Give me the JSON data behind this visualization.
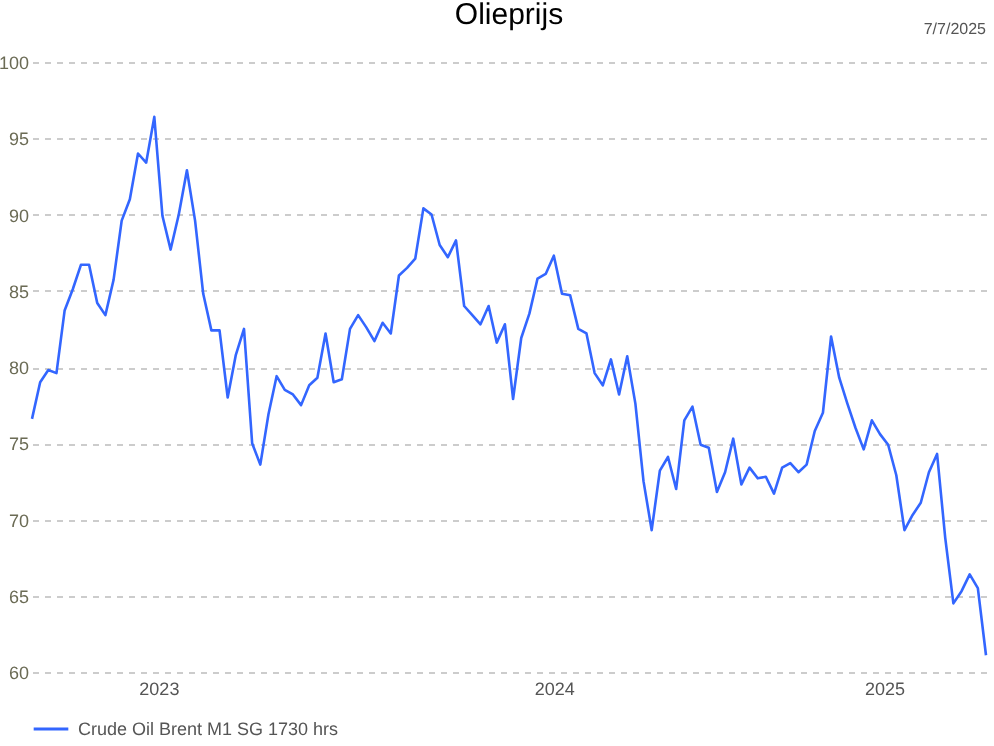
{
  "chart_data": {
    "type": "line",
    "title": "Olieprijs",
    "annotations": [
      "7/7/2025"
    ],
    "x": [
      2023.17,
      2023.19,
      2023.21,
      2023.23,
      2023.25,
      2023.27,
      2023.29,
      2023.31,
      2023.33,
      2023.35,
      2023.37,
      2023.39,
      2023.41,
      2023.43,
      2023.45,
      2023.47,
      2023.49,
      2023.51,
      2023.53,
      2023.55,
      2023.57,
      2023.59,
      2023.61,
      2023.63,
      2023.65,
      2023.67,
      2023.69,
      2023.71,
      2023.73,
      2023.75,
      2023.77,
      2023.79,
      2023.81,
      2023.83,
      2023.85,
      2023.87,
      2023.89,
      2023.91,
      2023.93,
      2023.95,
      2023.97,
      2023.99,
      2024.01,
      2024.03,
      2024.05,
      2024.07,
      2024.09,
      2024.11,
      2024.13,
      2024.15,
      2024.17,
      2024.19,
      2024.21,
      2024.23,
      2024.25,
      2024.27,
      2024.29,
      2024.31,
      2024.33,
      2024.35,
      2024.37,
      2024.39,
      2024.41,
      2024.43,
      2024.45,
      2024.47,
      2024.49,
      2024.51,
      2024.53,
      2024.55,
      2024.57,
      2024.59,
      2024.61,
      2024.63,
      2024.65,
      2024.67,
      2024.69,
      2024.71,
      2024.73,
      2024.75,
      2024.77,
      2024.79,
      2024.81,
      2024.83,
      2024.85,
      2024.87,
      2024.89,
      2024.91,
      2024.93,
      2024.95,
      2024.97,
      2024.99,
      2025.01,
      2025.03,
      2025.05,
      2025.07,
      2025.09,
      2025.11,
      2025.13,
      2025.15,
      2025.17,
      2025.19,
      2025.21,
      2025.23,
      2025.25,
      2025.27,
      2025.29,
      2025.31,
      2025.33,
      2025.35,
      2025.37,
      2025.39,
      2025.41,
      2025.43,
      2025.45,
      2025.47,
      2025.49,
      2025.51
    ],
    "series": [
      {
        "name": "Crude Oil Brent M1 SG 1730 hrs",
        "color": "#3366ff",
        "values": [
          76.6,
          79.0,
          79.8,
          79.6,
          83.7,
          85.1,
          86.7,
          86.7,
          84.2,
          83.4,
          85.7,
          89.6,
          91.0,
          94.0,
          93.4,
          96.4,
          89.9,
          87.7,
          90.0,
          92.9,
          89.6,
          84.8,
          82.4,
          82.4,
          78.0,
          80.8,
          82.5,
          75.0,
          73.6,
          76.9,
          79.4,
          78.5,
          78.2,
          77.5,
          78.8,
          79.3,
          82.2,
          79.0,
          79.2,
          82.5,
          83.4,
          82.6,
          81.7,
          82.9,
          82.2,
          86.0,
          86.5,
          87.1,
          90.4,
          90.0,
          88.0,
          87.2,
          88.3,
          84.0,
          83.4,
          82.8,
          84.0,
          81.6,
          82.8,
          77.9,
          81.9,
          83.5,
          85.8,
          86.1,
          87.3,
          84.8,
          84.7,
          82.5,
          82.2,
          79.6,
          78.8,
          80.5,
          78.2,
          80.7,
          77.6,
          72.5,
          69.3,
          73.2,
          74.1,
          72.0,
          76.5,
          77.4,
          74.9,
          74.7,
          71.8,
          73.1,
          75.3,
          72.3,
          73.4,
          72.7,
          72.8,
          71.7,
          73.4,
          73.7,
          73.1,
          73.6,
          75.8,
          77.0,
          82.0,
          79.3,
          77.6,
          76.0,
          74.6,
          76.5,
          75.6,
          74.9,
          72.9,
          69.3,
          70.3,
          71.1,
          73.1,
          74.3,
          68.8,
          64.5,
          65.3,
          66.4,
          65.5,
          61.1
        ]
      }
    ],
    "xlim": [
      2023.17,
      2025.51
    ],
    "xticks": [
      {
        "value": 2023.48,
        "label": "2023"
      },
      {
        "value": 2024.45,
        "label": "2024"
      },
      {
        "value": 2025.26,
        "label": "2025"
      }
    ],
    "ylim": [
      60,
      100
    ],
    "yticks": [
      60,
      65,
      70,
      75,
      80,
      85,
      90,
      95,
      100
    ],
    "grid": "y",
    "legend": "bottom",
    "marker": "none",
    "line_style": "solid"
  }
}
